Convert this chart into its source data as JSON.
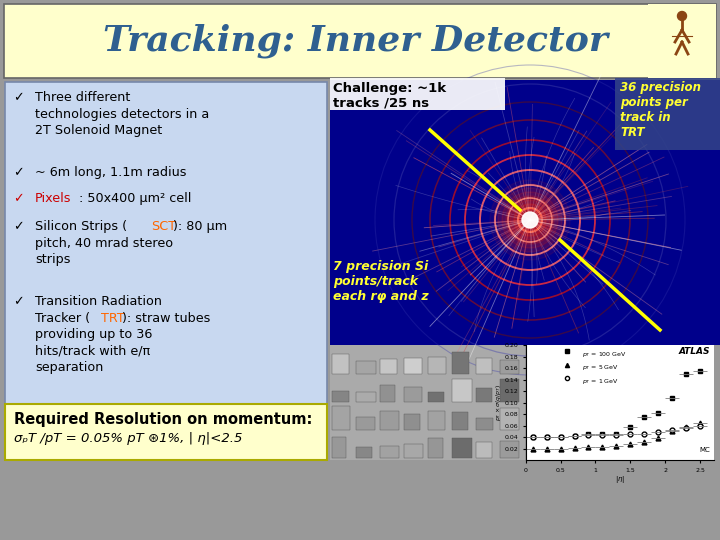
{
  "title": "Tracking: Inner Detector",
  "title_color": "#2F6090",
  "title_bg": "#FFFFCC",
  "title_fontsize": 26,
  "slide_bg": "#999999",
  "left_box_bg": "#C8D8F0",
  "left_box_border": "#7788AA",
  "challenge_text": "Challenge: ~1k\ntracks /25 ns",
  "annotation1_text": "36 precision\npoints per\ntrack in\nTRT",
  "annotation2_text": "7 precision Si\npoints/track\neach rφ and z",
  "bottom_text_line1": "Required Resolution on momentum:",
  "bottom_text_line2": "σₚT /pT = 0.05% pT ⊛1%, | η|<2.5",
  "bottom_box_bg": "#FFFFCC",
  "bottom_box_border": "#AAAA00",
  "eta": [
    0.1,
    0.3,
    0.5,
    0.7,
    0.9,
    1.1,
    1.3,
    1.5,
    1.7,
    1.9,
    2.1,
    2.3,
    2.5
  ],
  "pt100": [
    0.04,
    0.04,
    0.04,
    0.042,
    0.045,
    0.046,
    0.046,
    0.058,
    0.075,
    0.082,
    0.108,
    0.15,
    0.155
  ],
  "pt5": [
    0.019,
    0.019,
    0.02,
    0.021,
    0.022,
    0.023,
    0.024,
    0.028,
    0.032,
    0.038,
    0.05,
    0.058,
    0.065
  ],
  "pt1": [
    0.04,
    0.04,
    0.041,
    0.042,
    0.043,
    0.044,
    0.044,
    0.045,
    0.046,
    0.048,
    0.052,
    0.055,
    0.06
  ]
}
